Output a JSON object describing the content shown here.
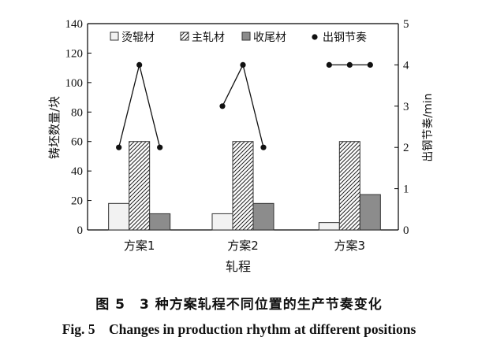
{
  "chart_data": {
    "type": "bar",
    "categories": [
      "方案1",
      "方案2",
      "方案3"
    ],
    "xlabel": "轧程",
    "ylabel": "铸坯数量/块",
    "y2label": "出钢节奏/min",
    "ylim": [
      0,
      140
    ],
    "y2lim": [
      0,
      5
    ],
    "yticks": [
      "0",
      "20",
      "40",
      "60",
      "80",
      "100",
      "120",
      "140"
    ],
    "y2ticks": [
      "0",
      "1",
      "2",
      "3",
      "4",
      "5"
    ],
    "series": [
      {
        "name": "烫辊材",
        "values": [
          18,
          11,
          5
        ],
        "fill": "#f2f2f2",
        "pattern": "none"
      },
      {
        "name": "主轧材",
        "values": [
          60,
          60,
          60
        ],
        "fill": "#ffffff",
        "pattern": "hatch"
      },
      {
        "name": "收尾材",
        "values": [
          11,
          18,
          24
        ],
        "fill": "#8c8c8c",
        "pattern": "none"
      }
    ],
    "line_series": {
      "name": "出钢节奏",
      "axis": "right",
      "groups": [
        {
          "category": "方案1",
          "values": [
            2,
            4,
            2
          ]
        },
        {
          "category": "方案2",
          "values": [
            3,
            4,
            2
          ]
        },
        {
          "category": "方案3",
          "values": [
            4,
            4,
            4
          ]
        }
      ]
    },
    "legend_position": "top",
    "grid": false
  },
  "caption": {
    "cn": "图 5　3 种方案轧程不同位置的生产节奏变化",
    "en": "Fig. 5　Changes in production rhythm at different positions"
  }
}
